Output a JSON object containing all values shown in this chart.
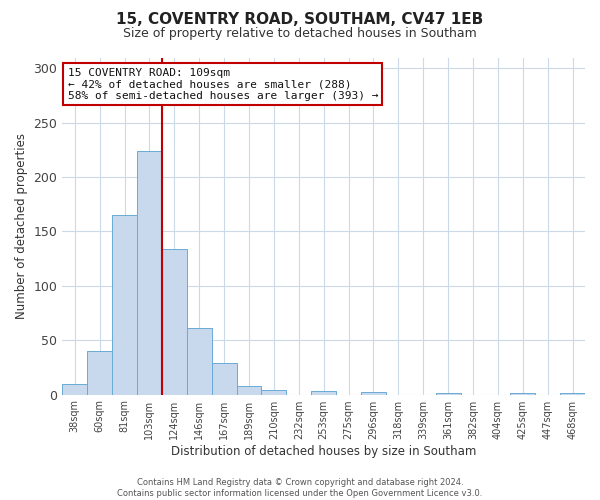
{
  "title": "15, COVENTRY ROAD, SOUTHAM, CV47 1EB",
  "subtitle": "Size of property relative to detached houses in Southam",
  "xlabel": "Distribution of detached houses by size in Southam",
  "ylabel": "Number of detached properties",
  "bin_labels": [
    "38sqm",
    "60sqm",
    "81sqm",
    "103sqm",
    "124sqm",
    "146sqm",
    "167sqm",
    "189sqm",
    "210sqm",
    "232sqm",
    "253sqm",
    "275sqm",
    "296sqm",
    "318sqm",
    "339sqm",
    "361sqm",
    "382sqm",
    "404sqm",
    "425sqm",
    "447sqm",
    "468sqm"
  ],
  "bar_heights": [
    10,
    40,
    165,
    224,
    134,
    61,
    29,
    8,
    4,
    0,
    3,
    0,
    2,
    0,
    0,
    1,
    0,
    0,
    1,
    0,
    1
  ],
  "bar_color": "#c8d9ee",
  "bar_edge_color": "#6aaad4",
  "vline_x_index": 3,
  "vline_color": "#c00000",
  "ylim": [
    0,
    310
  ],
  "yticks": [
    0,
    50,
    100,
    150,
    200,
    250,
    300
  ],
  "annotation_title": "15 COVENTRY ROAD: 109sqm",
  "annotation_line1": "← 42% of detached houses are smaller (288)",
  "annotation_line2": "58% of semi-detached houses are larger (393) →",
  "annotation_box_color": "#c00000",
  "footer_line1": "Contains HM Land Registry data © Crown copyright and database right 2024.",
  "footer_line2": "Contains public sector information licensed under the Open Government Licence v3.0.",
  "background_color": "#ffffff",
  "grid_color": "#ccd9e8"
}
